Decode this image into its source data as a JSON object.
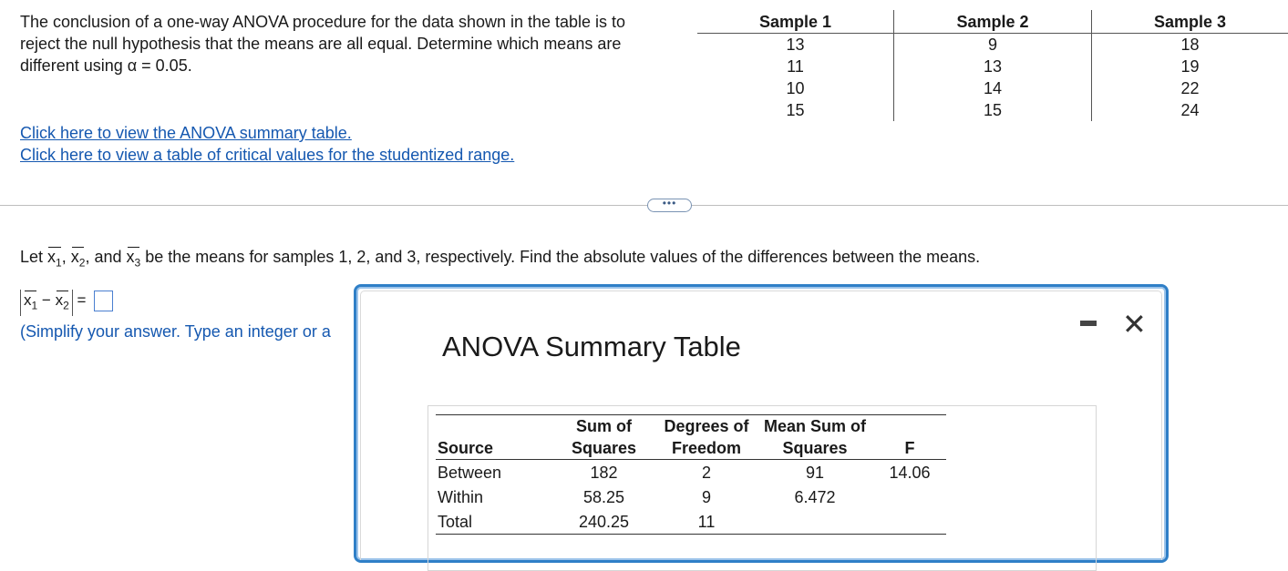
{
  "problem": {
    "text": "The conclusion of a one-way ANOVA procedure for the data shown in the table is to reject the null hypothesis that the means are all equal. Determine which means are different using α = 0.05."
  },
  "links": {
    "anova": "Click here to view the ANOVA summary table.",
    "critical": "Click here to view a table of critical values for the studentized range."
  },
  "samples": {
    "headers": [
      "Sample 1",
      "Sample 2",
      "Sample 3"
    ],
    "rows": [
      [
        "13",
        "9",
        "18"
      ],
      [
        "11",
        "13",
        "19"
      ],
      [
        "10",
        "14",
        "22"
      ],
      [
        "15",
        "15",
        "24"
      ]
    ]
  },
  "expand_button": "•••",
  "question": {
    "t1": "Let",
    "x": "x",
    "s1": "1",
    "s2": "2",
    "s3": "3",
    "comma": ",",
    "and": "and",
    "t2": "be the means for samples 1, 2, and 3, respectively. Find the absolute values of the differences between the means."
  },
  "answer": {
    "minus": "−",
    "equals": "="
  },
  "hint": "(Simplify your answer. Type an integer or a",
  "modal": {
    "title": "ANOVA Summary Table",
    "headers": {
      "source": "Source",
      "ss_1": "Sum of",
      "ss_2": "Squares",
      "df_1": "Degrees of",
      "df_2": "Freedom",
      "ms_1": "Mean Sum of",
      "ms_2": "Squares",
      "f": "F"
    },
    "rows": [
      {
        "source": "Between",
        "ss": "182",
        "df": "2",
        "ms": "91",
        "f": "14.06"
      },
      {
        "source": "Within",
        "ss": "58.25",
        "df": "9",
        "ms": "6.472",
        "f": ""
      },
      {
        "source": "Total",
        "ss": "240.25",
        "df": "11",
        "ms": "",
        "f": ""
      }
    ]
  }
}
